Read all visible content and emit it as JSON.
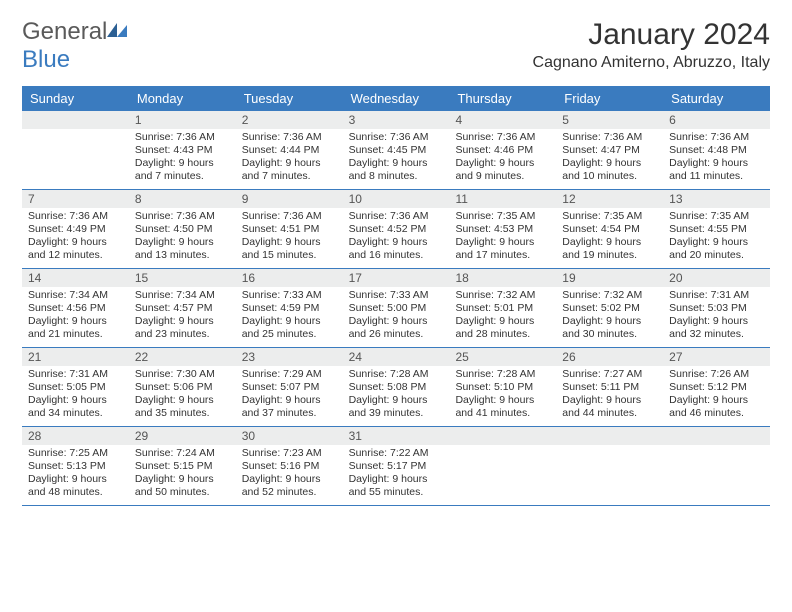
{
  "colors": {
    "header_bg": "#3a7bbf",
    "header_text": "#ffffff",
    "daynum_bg": "#eceded",
    "border": "#3a7bbf",
    "text": "#333333",
    "logo_gray": "#5a5a5a"
  },
  "logo": {
    "part1": "General",
    "part2": "Blue"
  },
  "title": "January 2024",
  "location": "Cagnano Amiterno, Abruzzo, Italy",
  "day_headers": [
    "Sunday",
    "Monday",
    "Tuesday",
    "Wednesday",
    "Thursday",
    "Friday",
    "Saturday"
  ],
  "weeks": [
    [
      {
        "n": "",
        "sr": "",
        "ss": "",
        "dl": ""
      },
      {
        "n": "1",
        "sr": "Sunrise: 7:36 AM",
        "ss": "Sunset: 4:43 PM",
        "dl": "Daylight: 9 hours and 7 minutes."
      },
      {
        "n": "2",
        "sr": "Sunrise: 7:36 AM",
        "ss": "Sunset: 4:44 PM",
        "dl": "Daylight: 9 hours and 7 minutes."
      },
      {
        "n": "3",
        "sr": "Sunrise: 7:36 AM",
        "ss": "Sunset: 4:45 PM",
        "dl": "Daylight: 9 hours and 8 minutes."
      },
      {
        "n": "4",
        "sr": "Sunrise: 7:36 AM",
        "ss": "Sunset: 4:46 PM",
        "dl": "Daylight: 9 hours and 9 minutes."
      },
      {
        "n": "5",
        "sr": "Sunrise: 7:36 AM",
        "ss": "Sunset: 4:47 PM",
        "dl": "Daylight: 9 hours and 10 minutes."
      },
      {
        "n": "6",
        "sr": "Sunrise: 7:36 AM",
        "ss": "Sunset: 4:48 PM",
        "dl": "Daylight: 9 hours and 11 minutes."
      }
    ],
    [
      {
        "n": "7",
        "sr": "Sunrise: 7:36 AM",
        "ss": "Sunset: 4:49 PM",
        "dl": "Daylight: 9 hours and 12 minutes."
      },
      {
        "n": "8",
        "sr": "Sunrise: 7:36 AM",
        "ss": "Sunset: 4:50 PM",
        "dl": "Daylight: 9 hours and 13 minutes."
      },
      {
        "n": "9",
        "sr": "Sunrise: 7:36 AM",
        "ss": "Sunset: 4:51 PM",
        "dl": "Daylight: 9 hours and 15 minutes."
      },
      {
        "n": "10",
        "sr": "Sunrise: 7:36 AM",
        "ss": "Sunset: 4:52 PM",
        "dl": "Daylight: 9 hours and 16 minutes."
      },
      {
        "n": "11",
        "sr": "Sunrise: 7:35 AM",
        "ss": "Sunset: 4:53 PM",
        "dl": "Daylight: 9 hours and 17 minutes."
      },
      {
        "n": "12",
        "sr": "Sunrise: 7:35 AM",
        "ss": "Sunset: 4:54 PM",
        "dl": "Daylight: 9 hours and 19 minutes."
      },
      {
        "n": "13",
        "sr": "Sunrise: 7:35 AM",
        "ss": "Sunset: 4:55 PM",
        "dl": "Daylight: 9 hours and 20 minutes."
      }
    ],
    [
      {
        "n": "14",
        "sr": "Sunrise: 7:34 AM",
        "ss": "Sunset: 4:56 PM",
        "dl": "Daylight: 9 hours and 21 minutes."
      },
      {
        "n": "15",
        "sr": "Sunrise: 7:34 AM",
        "ss": "Sunset: 4:57 PM",
        "dl": "Daylight: 9 hours and 23 minutes."
      },
      {
        "n": "16",
        "sr": "Sunrise: 7:33 AM",
        "ss": "Sunset: 4:59 PM",
        "dl": "Daylight: 9 hours and 25 minutes."
      },
      {
        "n": "17",
        "sr": "Sunrise: 7:33 AM",
        "ss": "Sunset: 5:00 PM",
        "dl": "Daylight: 9 hours and 26 minutes."
      },
      {
        "n": "18",
        "sr": "Sunrise: 7:32 AM",
        "ss": "Sunset: 5:01 PM",
        "dl": "Daylight: 9 hours and 28 minutes."
      },
      {
        "n": "19",
        "sr": "Sunrise: 7:32 AM",
        "ss": "Sunset: 5:02 PM",
        "dl": "Daylight: 9 hours and 30 minutes."
      },
      {
        "n": "20",
        "sr": "Sunrise: 7:31 AM",
        "ss": "Sunset: 5:03 PM",
        "dl": "Daylight: 9 hours and 32 minutes."
      }
    ],
    [
      {
        "n": "21",
        "sr": "Sunrise: 7:31 AM",
        "ss": "Sunset: 5:05 PM",
        "dl": "Daylight: 9 hours and 34 minutes."
      },
      {
        "n": "22",
        "sr": "Sunrise: 7:30 AM",
        "ss": "Sunset: 5:06 PM",
        "dl": "Daylight: 9 hours and 35 minutes."
      },
      {
        "n": "23",
        "sr": "Sunrise: 7:29 AM",
        "ss": "Sunset: 5:07 PM",
        "dl": "Daylight: 9 hours and 37 minutes."
      },
      {
        "n": "24",
        "sr": "Sunrise: 7:28 AM",
        "ss": "Sunset: 5:08 PM",
        "dl": "Daylight: 9 hours and 39 minutes."
      },
      {
        "n": "25",
        "sr": "Sunrise: 7:28 AM",
        "ss": "Sunset: 5:10 PM",
        "dl": "Daylight: 9 hours and 41 minutes."
      },
      {
        "n": "26",
        "sr": "Sunrise: 7:27 AM",
        "ss": "Sunset: 5:11 PM",
        "dl": "Daylight: 9 hours and 44 minutes."
      },
      {
        "n": "27",
        "sr": "Sunrise: 7:26 AM",
        "ss": "Sunset: 5:12 PM",
        "dl": "Daylight: 9 hours and 46 minutes."
      }
    ],
    [
      {
        "n": "28",
        "sr": "Sunrise: 7:25 AM",
        "ss": "Sunset: 5:13 PM",
        "dl": "Daylight: 9 hours and 48 minutes."
      },
      {
        "n": "29",
        "sr": "Sunrise: 7:24 AM",
        "ss": "Sunset: 5:15 PM",
        "dl": "Daylight: 9 hours and 50 minutes."
      },
      {
        "n": "30",
        "sr": "Sunrise: 7:23 AM",
        "ss": "Sunset: 5:16 PM",
        "dl": "Daylight: 9 hours and 52 minutes."
      },
      {
        "n": "31",
        "sr": "Sunrise: 7:22 AM",
        "ss": "Sunset: 5:17 PM",
        "dl": "Daylight: 9 hours and 55 minutes."
      },
      {
        "n": "",
        "sr": "",
        "ss": "",
        "dl": ""
      },
      {
        "n": "",
        "sr": "",
        "ss": "",
        "dl": ""
      },
      {
        "n": "",
        "sr": "",
        "ss": "",
        "dl": ""
      }
    ]
  ]
}
